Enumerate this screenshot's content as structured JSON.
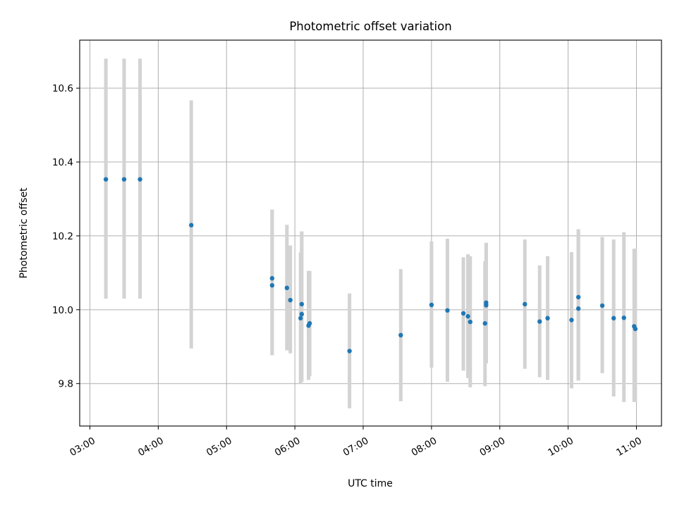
{
  "chart_data": {
    "type": "scatter",
    "title": "Photometric offset variation",
    "xlabel": "UTC time",
    "ylabel": "Photometric offset",
    "xlim": [
      "02:51",
      "11:22"
    ],
    "ylim": [
      9.685,
      10.73
    ],
    "x_ticks": [
      "03:00",
      "04:00",
      "05:00",
      "06:00",
      "07:00",
      "08:00",
      "09:00",
      "10:00",
      "11:00"
    ],
    "y_ticks": [
      9.8,
      10.0,
      10.2,
      10.4,
      10.6
    ],
    "grid": true,
    "marker_color": "#1f77b4",
    "errorbar_color": "#d3d3d3",
    "points": [
      {
        "t": "03:14",
        "y": 10.353,
        "lo": 10.03,
        "hi": 10.68
      },
      {
        "t": "03:30",
        "y": 10.353,
        "lo": 10.03,
        "hi": 10.68
      },
      {
        "t": "03:44",
        "y": 10.353,
        "lo": 10.03,
        "hi": 10.68
      },
      {
        "t": "04:29",
        "y": 10.229,
        "lo": 9.895,
        "hi": 10.567
      },
      {
        "t": "05:40",
        "y": 10.085,
        "lo": 9.877,
        "hi": 10.271
      },
      {
        "t": "05:40",
        "y": 10.066,
        "lo": 9.877,
        "hi": 10.271
      },
      {
        "t": "05:53",
        "y": 10.059,
        "lo": 9.89,
        "hi": 10.23
      },
      {
        "t": "05:56",
        "y": 10.026,
        "lo": 9.882,
        "hi": 10.174
      },
      {
        "t": "06:05",
        "y": 9.977,
        "lo": 9.8,
        "hi": 10.155
      },
      {
        "t": "06:06",
        "y": 10.015,
        "lo": 9.805,
        "hi": 10.212
      },
      {
        "t": "06:06",
        "y": 9.988,
        "lo": 9.805,
        "hi": 10.212
      },
      {
        "t": "06:12",
        "y": 9.957,
        "lo": 9.81,
        "hi": 10.105
      },
      {
        "t": "06:13",
        "y": 9.963,
        "lo": 9.82,
        "hi": 10.105
      },
      {
        "t": "06:48",
        "y": 9.888,
        "lo": 9.733,
        "hi": 10.044
      },
      {
        "t": "07:33",
        "y": 9.931,
        "lo": 9.752,
        "hi": 10.11
      },
      {
        "t": "08:00",
        "y": 10.013,
        "lo": 9.843,
        "hi": 10.185
      },
      {
        "t": "08:14",
        "y": 9.998,
        "lo": 9.805,
        "hi": 10.192
      },
      {
        "t": "08:28",
        "y": 9.99,
        "lo": 9.835,
        "hi": 10.142
      },
      {
        "t": "08:32",
        "y": 9.982,
        "lo": 9.815,
        "hi": 10.15
      },
      {
        "t": "08:34",
        "y": 9.967,
        "lo": 9.79,
        "hi": 10.145
      },
      {
        "t": "08:47",
        "y": 9.963,
        "lo": 9.793,
        "hi": 10.131
      },
      {
        "t": "08:48",
        "y": 10.019,
        "lo": 9.855,
        "hi": 10.181
      },
      {
        "t": "08:48",
        "y": 10.012,
        "lo": 9.855,
        "hi": 10.181
      },
      {
        "t": "09:22",
        "y": 10.015,
        "lo": 9.84,
        "hi": 10.19
      },
      {
        "t": "09:35",
        "y": 9.968,
        "lo": 9.817,
        "hi": 10.12
      },
      {
        "t": "09:42",
        "y": 9.977,
        "lo": 9.81,
        "hi": 10.145
      },
      {
        "t": "10:03",
        "y": 9.972,
        "lo": 9.787,
        "hi": 10.156
      },
      {
        "t": "10:09",
        "y": 10.034,
        "lo": 9.808,
        "hi": 10.218
      },
      {
        "t": "10:09",
        "y": 10.003,
        "lo": 9.808,
        "hi": 10.218
      },
      {
        "t": "10:30",
        "y": 10.011,
        "lo": 9.828,
        "hi": 10.197
      },
      {
        "t": "10:40",
        "y": 9.977,
        "lo": 9.765,
        "hi": 10.19
      },
      {
        "t": "10:49",
        "y": 9.978,
        "lo": 9.75,
        "hi": 10.21
      },
      {
        "t": "10:58",
        "y": 9.955,
        "lo": 9.75,
        "hi": 10.165
      },
      {
        "t": "10:59",
        "y": 9.948,
        "lo": 9.75,
        "hi": 10.165
      }
    ]
  }
}
